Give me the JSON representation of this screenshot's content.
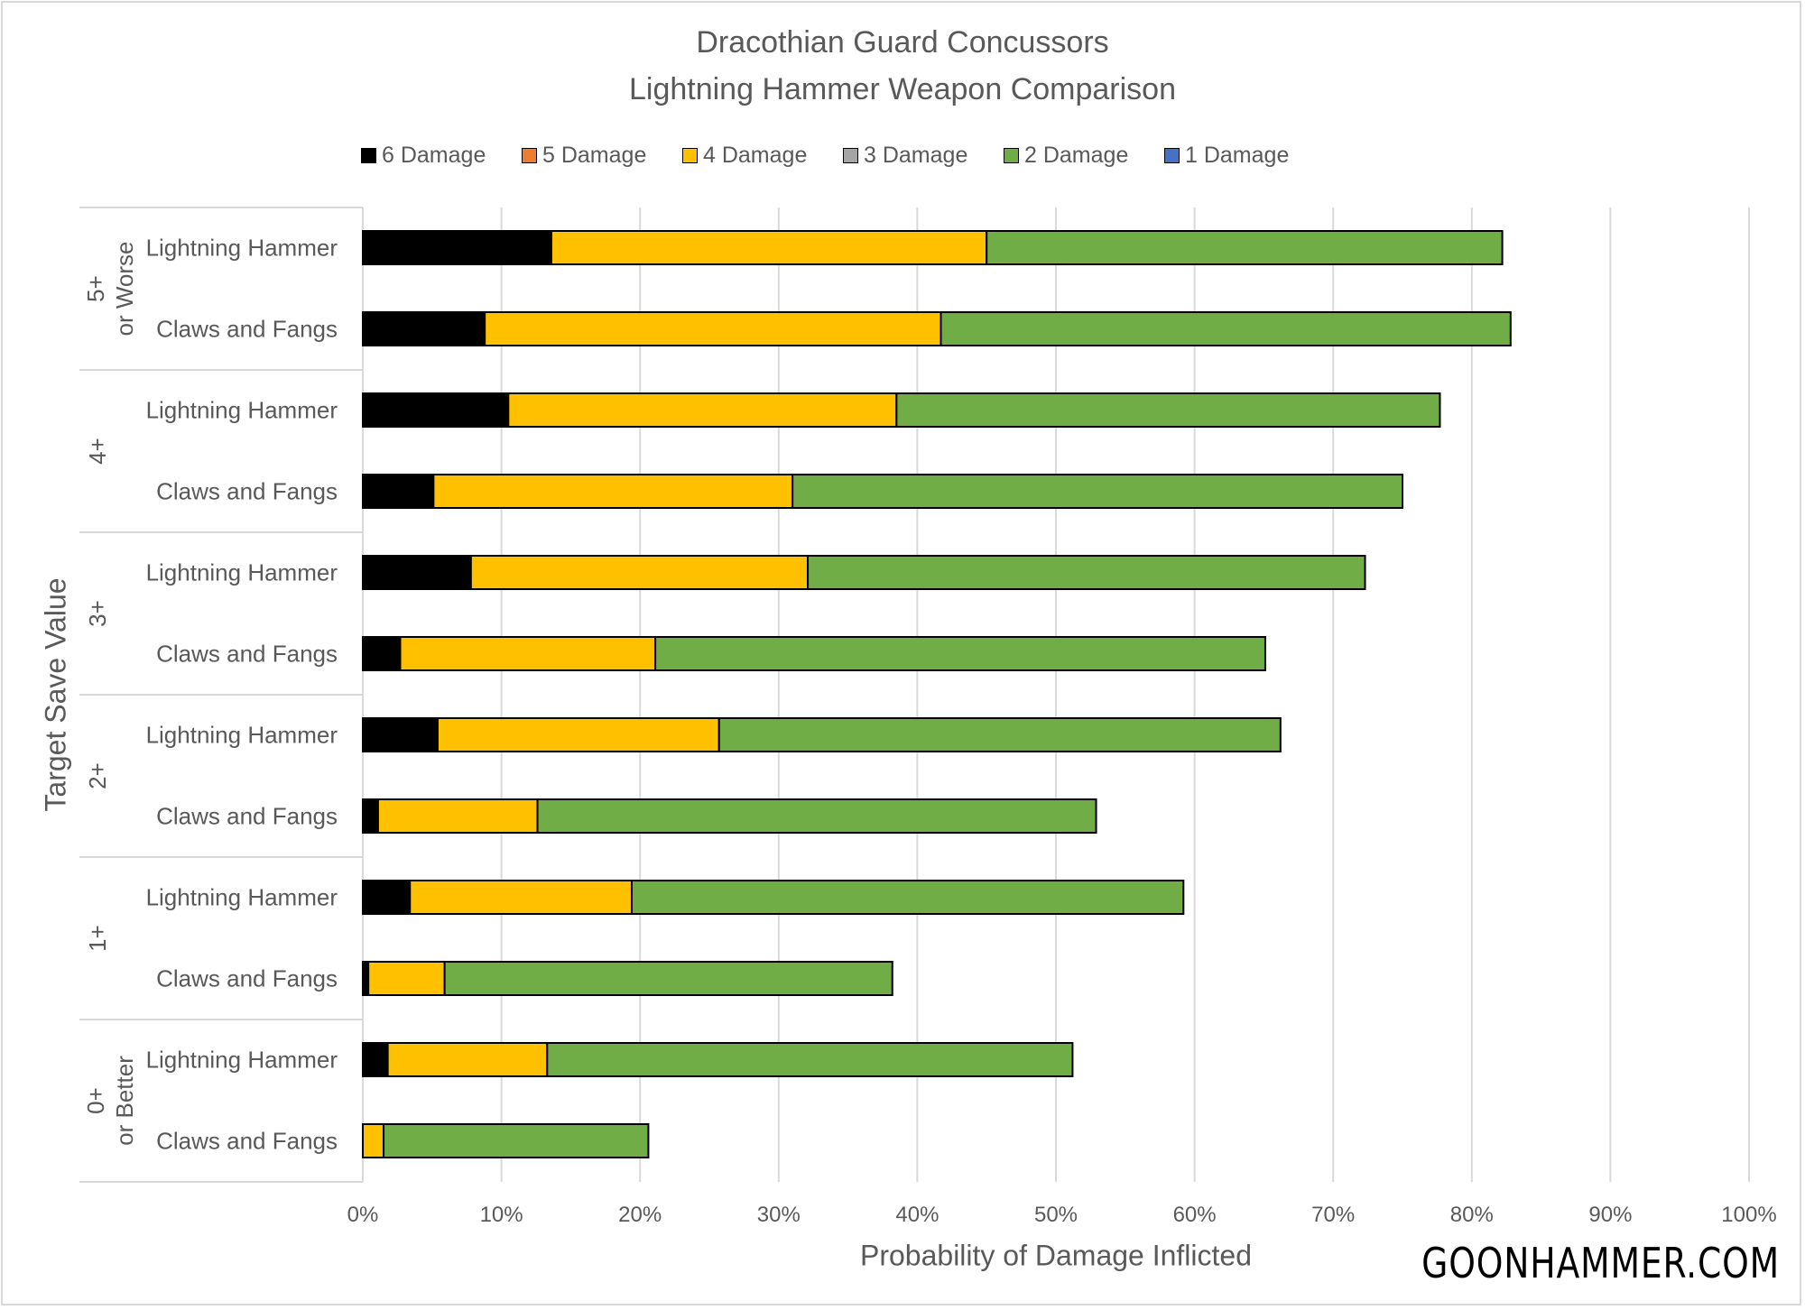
{
  "chart_data": {
    "type": "bar",
    "orientation": "horizontal",
    "stacked": true,
    "title": [
      "Dracothian Guard Concussors",
      "Lightning Hammer Weapon Comparison"
    ],
    "xlabel": "Probability of Damage Inflicted",
    "ylabel": "Target Save Value",
    "xlim": [
      0,
      100
    ],
    "x_ticks": [
      "0%",
      "10%",
      "20%",
      "30%",
      "40%",
      "50%",
      "60%",
      "70%",
      "80%",
      "90%",
      "100%"
    ],
    "grid": true,
    "legend_position": "top",
    "legend": [
      {
        "name": "6 Damage",
        "color": "#000000"
      },
      {
        "name": "5 Damage",
        "color": "#ED7D31"
      },
      {
        "name": "4 Damage",
        "color": "#FFC000"
      },
      {
        "name": "3 Damage",
        "color": "#A5A5A5"
      },
      {
        "name": "2 Damage",
        "color": "#70AD47"
      },
      {
        "name": "1 Damage",
        "color": "#4472C4"
      }
    ],
    "groups": [
      {
        "label": [
          "5+",
          "or Worse"
        ],
        "categories": [
          "Lightning Hammer",
          "Claws and Fangs"
        ]
      },
      {
        "label": [
          "4+"
        ],
        "categories": [
          "Lightning Hammer",
          "Claws and Fangs"
        ]
      },
      {
        "label": [
          "3+"
        ],
        "categories": [
          "Lightning Hammer",
          "Claws and Fangs"
        ]
      },
      {
        "label": [
          "2+"
        ],
        "categories": [
          "Lightning Hammer",
          "Claws and Fangs"
        ]
      },
      {
        "label": [
          "1+"
        ],
        "categories": [
          "Lightning Hammer",
          "Claws and Fangs"
        ]
      },
      {
        "label": [
          "0+",
          "or Better"
        ],
        "categories": [
          "Lightning Hammer",
          "Claws and Fangs"
        ]
      }
    ],
    "series": [
      {
        "name": "6 Damage",
        "values": [
          13.6,
          8.8,
          10.5,
          5.1,
          7.8,
          2.7,
          5.4,
          1.1,
          3.4,
          0.4,
          1.8,
          0.0
        ]
      },
      {
        "name": "5 Damage",
        "values": [
          0,
          0,
          0,
          0,
          0,
          0,
          0,
          0,
          0,
          0,
          0,
          0
        ]
      },
      {
        "name": "4 Damage",
        "values": [
          31.4,
          32.9,
          28.0,
          25.9,
          24.3,
          18.4,
          20.3,
          11.5,
          16.0,
          5.5,
          11.5,
          1.5
        ]
      },
      {
        "name": "3 Damage",
        "values": [
          0,
          0,
          0,
          0,
          0,
          0,
          0,
          0,
          0,
          0,
          0,
          0
        ]
      },
      {
        "name": "2 Damage",
        "values": [
          37.2,
          41.1,
          39.2,
          44.0,
          40.2,
          44.0,
          40.5,
          40.3,
          39.8,
          32.3,
          37.9,
          19.1
        ]
      },
      {
        "name": "1 Damage",
        "values": [
          0,
          0,
          0,
          0,
          0,
          0,
          0,
          0,
          0,
          0,
          0,
          0
        ]
      }
    ]
  },
  "watermark": "GOONHAMMER.COM"
}
